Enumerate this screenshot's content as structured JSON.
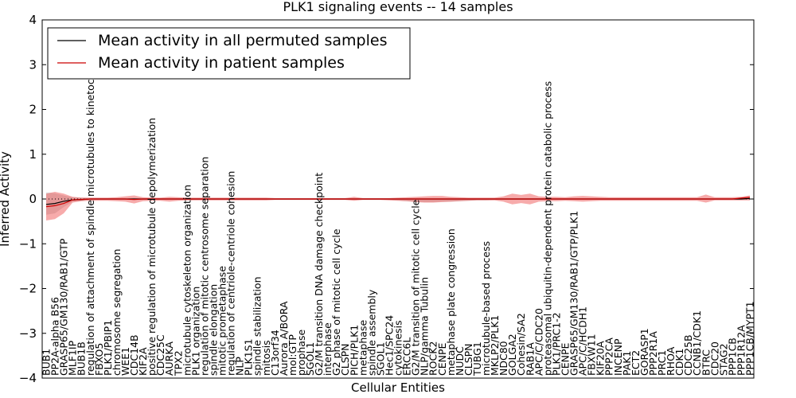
{
  "chart_data": {
    "type": "line",
    "title": "PLK1 signaling events -- 14 samples",
    "xlabel": "Cellular Entities",
    "ylabel": "Inferred Activity",
    "ylim": [
      -4,
      4
    ],
    "yticks": [
      "−4",
      "−3",
      "−2",
      "−1",
      "0",
      "1",
      "2",
      "3",
      "4"
    ],
    "yticks_values": [
      -4,
      -3,
      -2,
      -1,
      0,
      1,
      2,
      3,
      4
    ],
    "grid": false,
    "legend_position": "top-left",
    "categories": [
      "BUB1",
      "PP2A-alpha B56",
      "GRASP65/GM130/RAB1/GTP",
      "MLF1IP",
      "BUB1B",
      "regulation of attachment of spindle microtubules to kinetochore",
      "FBXO5",
      "PLK1/PBIP1",
      "chromosome segregation",
      "WEE1",
      "CDC14B",
      "KIF2A",
      "positive regulation of microtubule depolymerization",
      "CDC25C",
      "AURKA",
      "TPX2",
      "microtubule cytoskeleton organization",
      "PLK1 organization",
      "regulation of mitotic centrosome separation",
      "spindle elongation",
      "mitotic prometaphase",
      "regulation of centriole-centriole cohesion",
      "NLP",
      "PLK1S1",
      "spindle stabilization",
      "mitosis",
      "C13orf34",
      "Aurora A/BORA",
      "mol:GTP",
      "prophase",
      "SGOL1",
      "G2/M transition DNA damage checkpoint",
      "interphase",
      "G2 phase of mitotic cell cycle",
      "CLSPN",
      "PICH/PLK1",
      "metaphase",
      "spindle assembly",
      "SGOL1",
      "Hec1/SPC24",
      "cytokinesis",
      "ERCC6L",
      "G2/M transition of mitotic cell cycle",
      "NLP/gamma Tubulin",
      "ROCK2",
      "CENPE",
      "metaphase plate congression",
      "NUDC",
      "CLSPN",
      "TUBG1",
      "microtubule-based process",
      "MKLP2/PLK1",
      "NDC80",
      "GOLGA2",
      "Cohesin/SA2",
      "RAB1A",
      "APC/C/CDC20",
      "proteasomal ubiquitin-dependent protein catabolic process",
      "PLK1/PRC1-2",
      "CENPE",
      "GRASP65/GM130/RAB1/GTP/PLK1",
      "APC/C/HCDH1",
      "FBXW11",
      "KIF20A",
      "PPP2CA",
      "INCENP",
      "PAK1",
      "ECT2",
      "GORASP1",
      "PPP2R1A",
      "PRC1",
      "RHOA",
      "CDK1",
      "CDC25B",
      "CCNB1/CDK1",
      "BTRC",
      "CDC20",
      "STAG2",
      "PPP1CB",
      "PPP1R12A",
      "PPP1CB/MYPT1"
    ],
    "series": [
      {
        "name": "Mean activity in all permuted samples",
        "color": "#000000",
        "values": [
          -0.12,
          -0.1,
          -0.05,
          -0.02,
          -0.01,
          0,
          0,
          0,
          0,
          0,
          0,
          0,
          0,
          0,
          0,
          0,
          0,
          0,
          0,
          0,
          0,
          0,
          0,
          0,
          0,
          0,
          0,
          0,
          0,
          0,
          0,
          0,
          0,
          0,
          0,
          0,
          0,
          0,
          0,
          0,
          0,
          0,
          0,
          0,
          0,
          0,
          0,
          0,
          0,
          0,
          0,
          0,
          0,
          0,
          0,
          0,
          0,
          0,
          0,
          0,
          0,
          0,
          0,
          0,
          0,
          0,
          0,
          0,
          0,
          0,
          0,
          0,
          0,
          0,
          0,
          0,
          0,
          0,
          0,
          0,
          0.01
        ]
      },
      {
        "name": "Mean activity in patient samples",
        "color": "#cc0000",
        "values": [
          -0.17,
          -0.15,
          -0.1,
          -0.02,
          -0.01,
          0,
          0,
          0,
          0,
          0,
          -0.01,
          0,
          0,
          0,
          0,
          0,
          0,
          0,
          0,
          0,
          0,
          0,
          0,
          0,
          0,
          0,
          0,
          0,
          0,
          0,
          0,
          0,
          0,
          0,
          0,
          0,
          0,
          0,
          0,
          0,
          0,
          0,
          0,
          0,
          0,
          0,
          0,
          0,
          0,
          0,
          0,
          0,
          0,
          0,
          0,
          0,
          0,
          0,
          0,
          0,
          0,
          0,
          0,
          0,
          0,
          0,
          0,
          0,
          0,
          0,
          0,
          0,
          0,
          0,
          0,
          0,
          0,
          0,
          0,
          0.02,
          0.04
        ]
      }
    ],
    "bands": [
      {
        "series": "Mean activity in all permuted samples",
        "color": "#bbbbbb",
        "opacity": 0.5,
        "upper": [
          0.15,
          0.13,
          0.08,
          0.04,
          0.03,
          0.02,
          0.02,
          0.02,
          0.02,
          0.02,
          0.02,
          0.02,
          0.02,
          0.02,
          0.02,
          0.02,
          0.02,
          0.02,
          0.02,
          0.02,
          0.02,
          0.02,
          0.02,
          0.02,
          0.02,
          0.02,
          0.02,
          0.02,
          0.02,
          0.02,
          0.02,
          0.02,
          0.02,
          0.02,
          0.02,
          0.02,
          0.02,
          0.02,
          0.02,
          0.02,
          0.02,
          0.02,
          0.02,
          0.02,
          0.02,
          0.02,
          0.02,
          0.02,
          0.02,
          0.02,
          0.02,
          0.02,
          0.02,
          0.02,
          0.02,
          0.02,
          0.02,
          0.02,
          0.02,
          0.02,
          0.02,
          0.02,
          0.02,
          0.02,
          0.02,
          0.02,
          0.02,
          0.02,
          0.02,
          0.02,
          0.02,
          0.02,
          0.02,
          0.02,
          0.02,
          0.02,
          0.02,
          0.02,
          0.02,
          0.02,
          0.03
        ],
        "lower": [
          -0.35,
          -0.32,
          -0.18,
          -0.06,
          -0.04,
          -0.02,
          -0.02,
          -0.02,
          -0.02,
          -0.02,
          -0.02,
          -0.02,
          -0.02,
          -0.02,
          -0.02,
          -0.02,
          -0.02,
          -0.02,
          -0.02,
          -0.02,
          -0.02,
          -0.02,
          -0.02,
          -0.02,
          -0.02,
          -0.02,
          -0.02,
          -0.02,
          -0.02,
          -0.02,
          -0.02,
          -0.02,
          -0.02,
          -0.02,
          -0.02,
          -0.02,
          -0.02,
          -0.02,
          -0.02,
          -0.02,
          -0.03,
          -0.05,
          -0.06,
          -0.07,
          -0.07,
          -0.06,
          -0.06,
          -0.05,
          -0.04,
          -0.03,
          -0.03,
          -0.02,
          -0.02,
          -0.02,
          -0.02,
          -0.02,
          -0.02,
          -0.02,
          -0.02,
          -0.02,
          -0.02,
          -0.02,
          -0.02,
          -0.02,
          -0.02,
          -0.02,
          -0.02,
          -0.02,
          -0.02,
          -0.02,
          -0.02,
          -0.02,
          -0.02,
          -0.02,
          -0.02,
          -0.02,
          -0.02,
          -0.02,
          -0.02,
          -0.02,
          -0.01
        ]
      },
      {
        "series": "Mean activity in patient samples",
        "color": "#ee4444",
        "opacity": 0.45,
        "upper": [
          0.12,
          0.16,
          0.12,
          0.05,
          0.03,
          0.03,
          0.03,
          0.03,
          0.04,
          0.06,
          0.08,
          0.04,
          0.03,
          0.03,
          0.05,
          0.04,
          0.03,
          0.03,
          0.03,
          0.03,
          0.03,
          0.03,
          0.03,
          0.03,
          0.03,
          0.03,
          0.02,
          0.02,
          0.02,
          0.02,
          0.02,
          0.02,
          0.02,
          0.02,
          0.02,
          0.05,
          0.02,
          0.02,
          0.02,
          0.02,
          0.03,
          0.04,
          0.05,
          0.06,
          0.07,
          0.07,
          0.05,
          0.04,
          0.03,
          0.03,
          0.03,
          0.03,
          0.06,
          0.12,
          0.09,
          0.12,
          0.06,
          0.05,
          0.05,
          0.04,
          0.06,
          0.07,
          0.06,
          0.05,
          0.04,
          0.04,
          0.04,
          0.04,
          0.04,
          0.04,
          0.04,
          0.04,
          0.04,
          0.04,
          0.04,
          0.1,
          0.04,
          0.04,
          0.04,
          0.05,
          0.08
        ],
        "lower": [
          -0.48,
          -0.45,
          -0.32,
          -0.08,
          -0.05,
          -0.04,
          -0.04,
          -0.04,
          -0.05,
          -0.06,
          -0.1,
          -0.05,
          -0.04,
          -0.04,
          -0.06,
          -0.04,
          -0.03,
          -0.03,
          -0.03,
          -0.03,
          -0.03,
          -0.03,
          -0.03,
          -0.03,
          -0.03,
          -0.03,
          -0.02,
          -0.02,
          -0.02,
          -0.02,
          -0.02,
          -0.02,
          -0.02,
          -0.02,
          -0.02,
          -0.04,
          -0.02,
          -0.02,
          -0.02,
          -0.03,
          -0.04,
          -0.05,
          -0.07,
          -0.08,
          -0.08,
          -0.07,
          -0.06,
          -0.05,
          -0.04,
          -0.03,
          -0.03,
          -0.03,
          -0.06,
          -0.12,
          -0.09,
          -0.12,
          -0.06,
          -0.05,
          -0.05,
          -0.04,
          -0.05,
          -0.06,
          -0.05,
          -0.04,
          -0.04,
          -0.04,
          -0.04,
          -0.04,
          -0.04,
          -0.04,
          -0.04,
          -0.04,
          -0.04,
          -0.04,
          -0.04,
          -0.08,
          -0.03,
          -0.03,
          -0.03,
          -0.03,
          -0.03
        ]
      }
    ]
  }
}
